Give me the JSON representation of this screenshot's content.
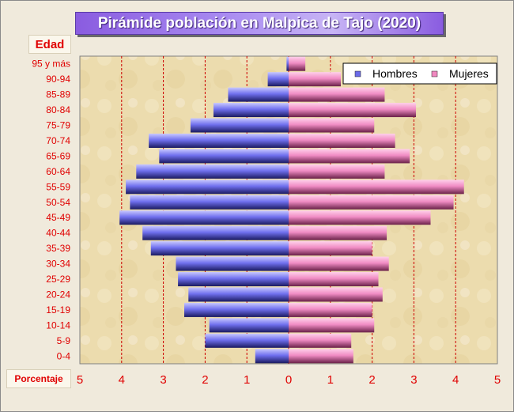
{
  "chart_data": {
    "type": "bar",
    "orientation": "horizontal",
    "title": "Pirámide población en Malpica de Tajo (2020)",
    "ylabel": "Edad",
    "xlabel": "Porcentaje",
    "categories": [
      "0-4",
      "5-9",
      "10-14",
      "15-19",
      "20-24",
      "25-29",
      "30-34",
      "35-39",
      "40-44",
      "45-49",
      "50-54",
      "55-59",
      "60-64",
      "65-69",
      "70-74",
      "75-79",
      "80-84",
      "85-89",
      "90-94",
      "95 y más"
    ],
    "series": [
      {
        "name": "Hombres",
        "values": [
          0.8,
          2.0,
          1.9,
          2.5,
          2.4,
          2.65,
          2.7,
          3.3,
          3.5,
          4.05,
          3.8,
          3.9,
          3.65,
          3.1,
          3.35,
          2.35,
          1.8,
          1.45,
          0.5,
          0.05
        ]
      },
      {
        "name": "Mujeres",
        "values": [
          1.55,
          1.5,
          2.05,
          2.0,
          2.25,
          2.15,
          2.4,
          2.0,
          2.35,
          3.4,
          3.95,
          4.2,
          2.3,
          2.9,
          2.55,
          2.05,
          3.05,
          2.3,
          1.25,
          0.4
        ]
      }
    ],
    "xticks": [
      "5",
      "4",
      "3",
      "2",
      "1",
      "0",
      "1",
      "2",
      "3",
      "4",
      "5"
    ],
    "xlim": [
      -5,
      5
    ],
    "grid": true,
    "legend": "top-right",
    "colors": {
      "hombres": "#6a6ae8",
      "mujeres": "#f088c0",
      "grid": "#cc0000",
      "axis_text": "#e00000"
    }
  }
}
